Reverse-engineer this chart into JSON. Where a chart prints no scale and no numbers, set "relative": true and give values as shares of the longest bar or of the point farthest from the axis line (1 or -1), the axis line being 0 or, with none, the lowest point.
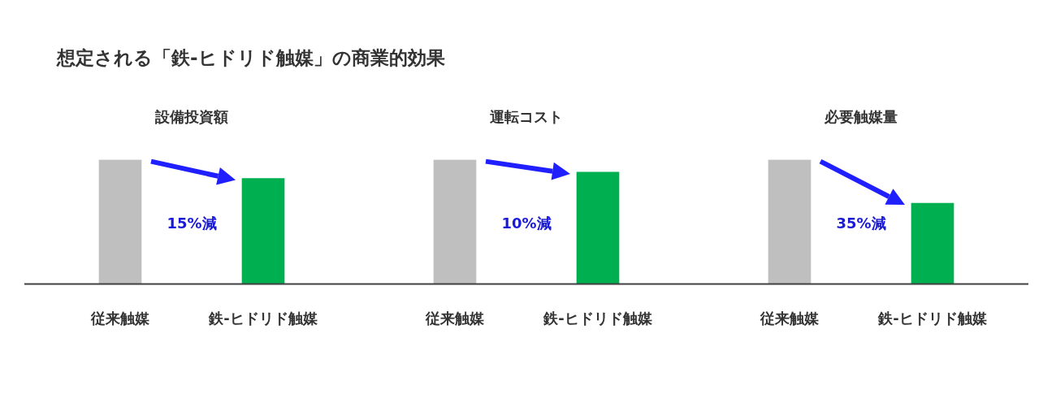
{
  "chart_data": [
    {
      "type": "other",
      "title": "想定される「鉄-ヒドリド触媒」の商業的効果"
    },
    {
      "type": "bar",
      "title": "設備投資額",
      "categories": [
        "従来触媒",
        "鉄-ヒドリド触媒"
      ],
      "values": [
        1,
        0.85
      ],
      "colors": [
        "#bfbfbf",
        "#00b050"
      ],
      "relative": true,
      "annotations": [
        "15%減"
      ]
    },
    {
      "type": "bar",
      "title": "運転コスト",
      "categories": [
        "従来触媒",
        "鉄-ヒドリド触媒"
      ],
      "values": [
        1,
        0.9
      ],
      "colors": [
        "#bfbfbf",
        "#00b050"
      ],
      "relative": true,
      "annotations": [
        "10%減"
      ]
    },
    {
      "type": "bar",
      "title": "必要触媒量",
      "categories": [
        "従来触媒",
        "鉄-ヒドリド触媒"
      ],
      "values": [
        1,
        0.65
      ],
      "colors": [
        "#bfbfbf",
        "#00b050"
      ],
      "relative": true,
      "annotations": [
        "35%減"
      ]
    }
  ]
}
